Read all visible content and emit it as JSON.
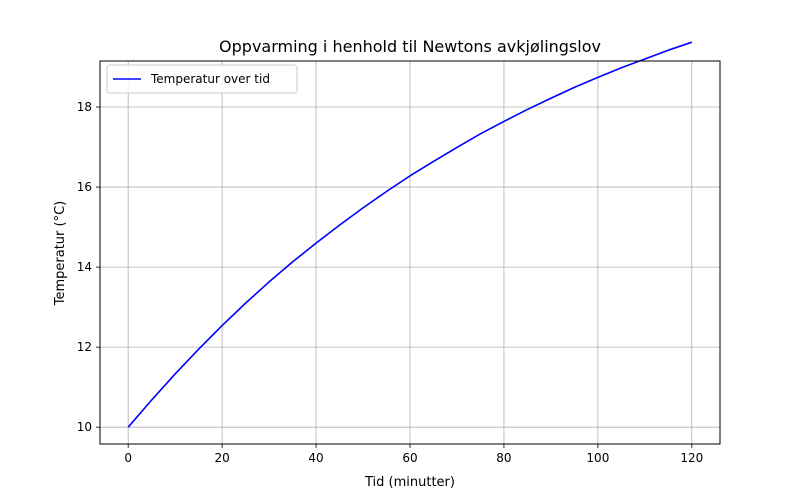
{
  "chart_data": {
    "type": "line",
    "title": "Oppvarming i henhold til Newtons avkjølingslov",
    "xlabel": "Tid (minutter)",
    "ylabel": "Temperatur (°C)",
    "xlim": [
      -6,
      126
    ],
    "ylim": [
      9.58,
      19.15
    ],
    "xticks": [
      0,
      20,
      40,
      60,
      80,
      100,
      120
    ],
    "yticks": [
      10,
      12,
      14,
      16,
      18
    ],
    "grid": true,
    "legend_position": "upper-left",
    "series": [
      {
        "name": "Temperatur over tid",
        "color": "#0000ff",
        "x": [
          0,
          5,
          10,
          15,
          20,
          25,
          30,
          35,
          40,
          45,
          50,
          55,
          60,
          65,
          70,
          75,
          80,
          85,
          90,
          95,
          100,
          105,
          110,
          115,
          120
        ],
        "y": [
          10.0,
          10.68,
          11.33,
          11.95,
          12.54,
          13.1,
          13.63,
          14.13,
          14.6,
          15.05,
          15.48,
          15.89,
          16.28,
          16.64,
          16.99,
          17.33,
          17.64,
          17.94,
          18.22,
          18.49,
          18.74,
          18.98,
          19.2,
          19.42,
          19.62
        ]
      }
    ]
  }
}
